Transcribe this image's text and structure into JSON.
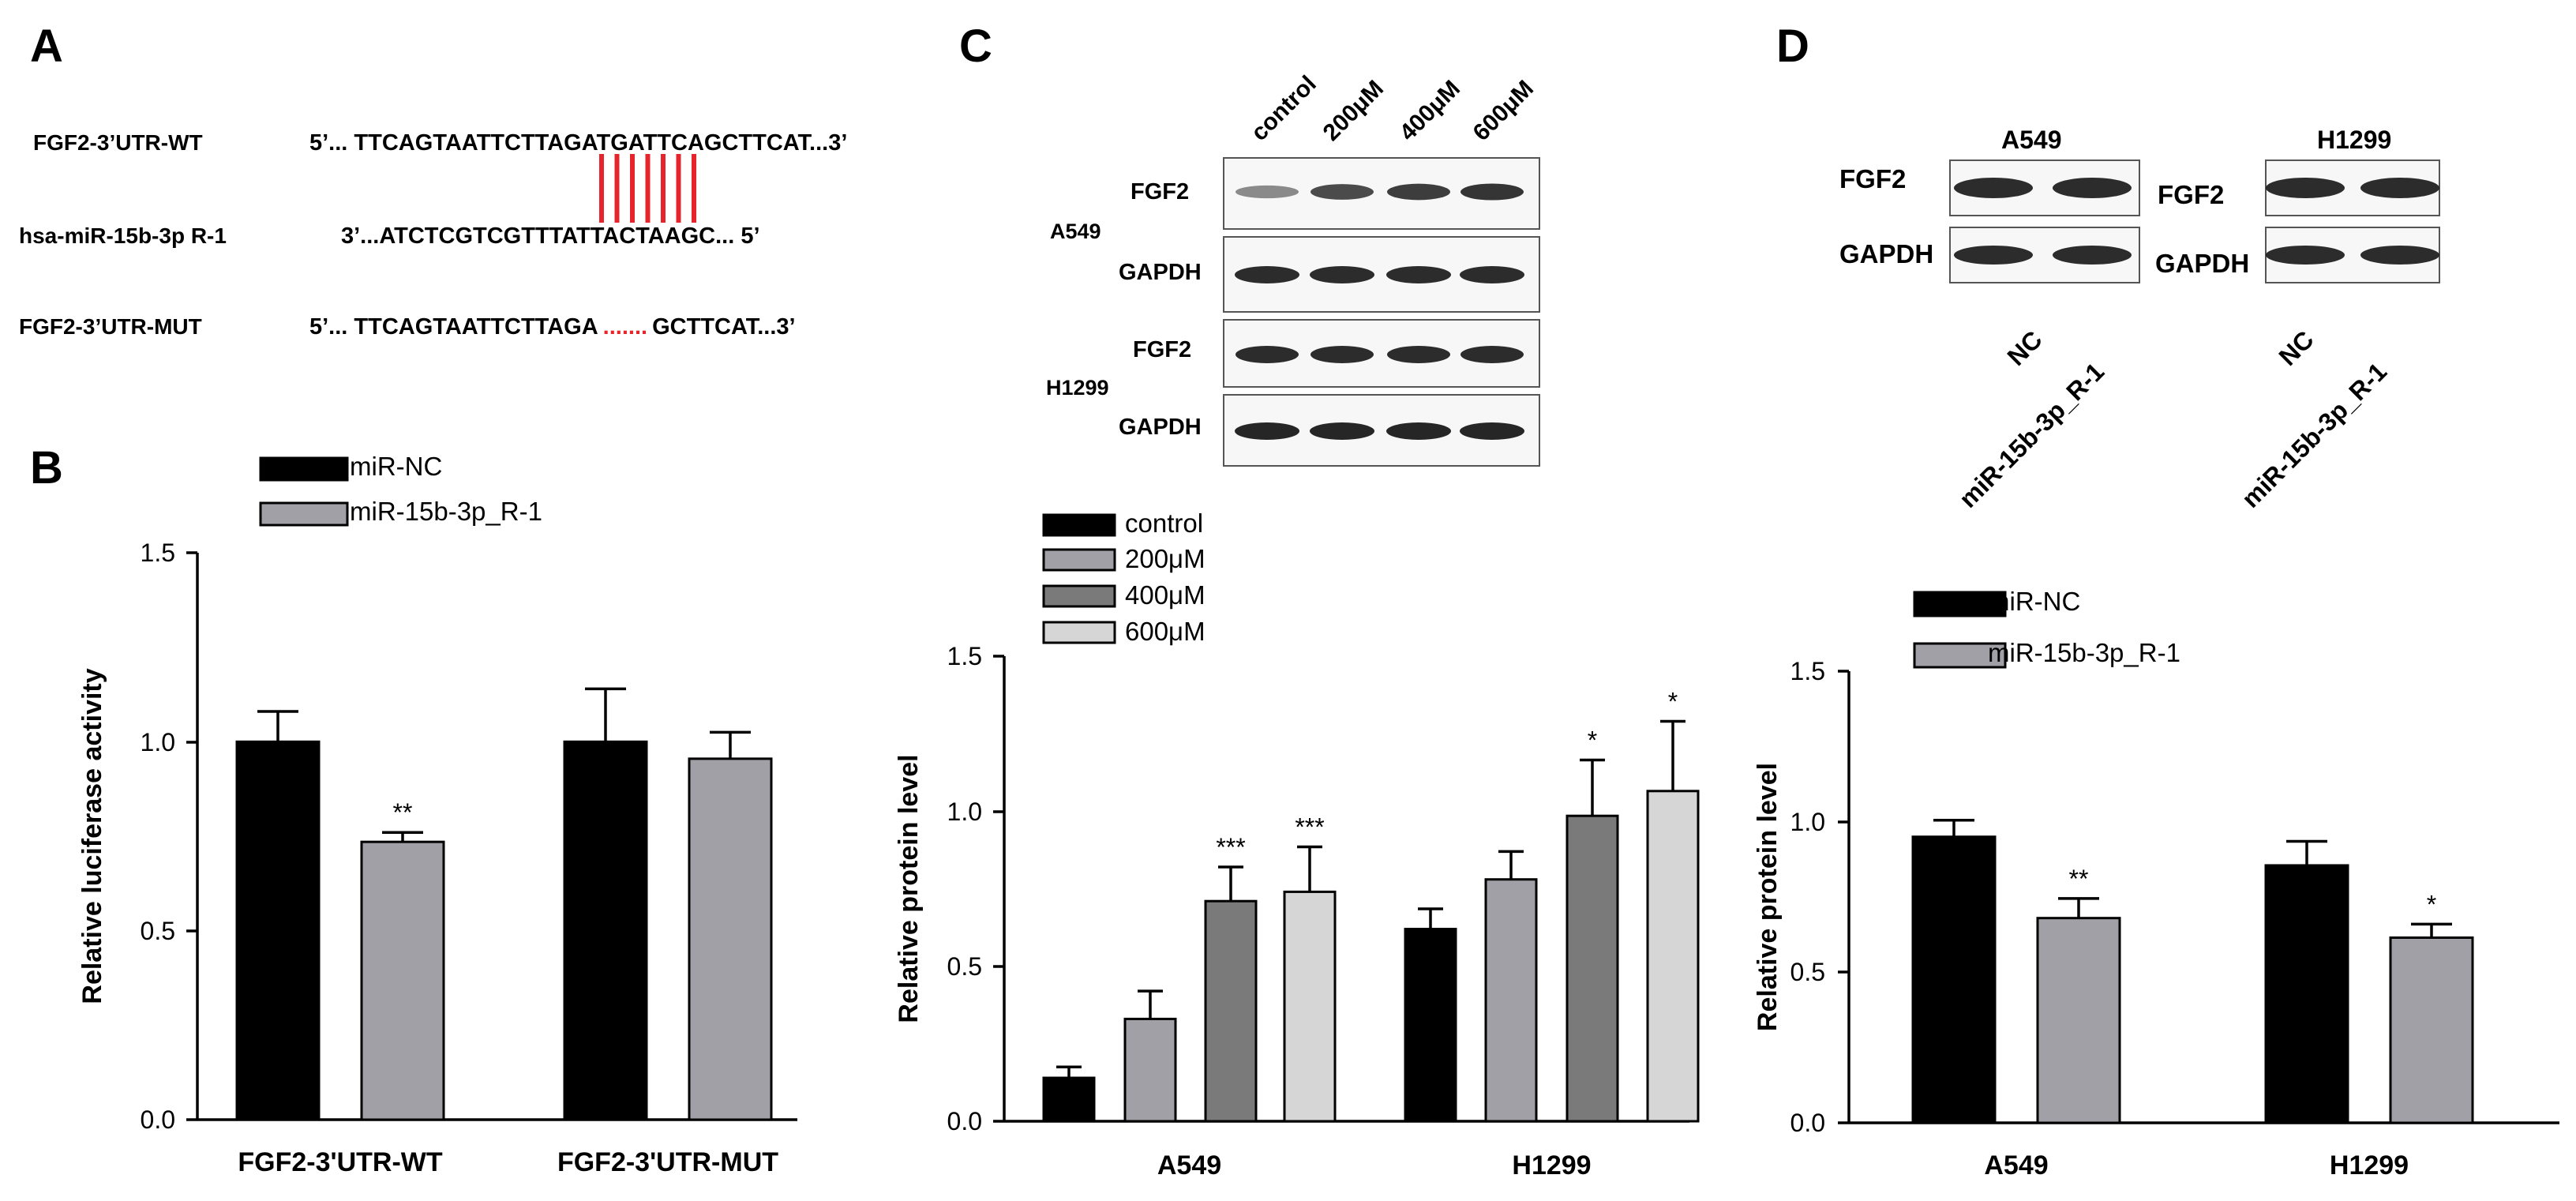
{
  "panel_letters": {
    "a": "A",
    "b": "B",
    "c": "C",
    "d": "D"
  },
  "colors": {
    "black": "#000000",
    "gray": "#a0a0a6",
    "dark_gray": "#7a7a7a",
    "light_gray": "#d6d6d6",
    "line_red": "#e5242b",
    "blot_band": "#1a1a1a"
  },
  "panelA": {
    "rows": [
      {
        "label": "FGF2-3’UTR-WT",
        "seq": "5’... TTCAGTAATTCTTAGATGATTCAGCTTCAT...3’"
      },
      {
        "label": "hsa-miR-15b-3p R-1",
        "seq": "3’...ATCTCGTCGTTTATTACTAAGC... 5’"
      },
      {
        "label": "FGF2-3’UTR-MUT",
        "seq_left": "5’... TTCAGTAATTCTTAGA",
        "seq_dots": ".......",
        "seq_right": "GCTTCAT...3’"
      }
    ]
  },
  "panelC_blot": {
    "lanes": [
      "control",
      "200μM",
      "400μM",
      "600μM"
    ],
    "cell_lines": [
      "A549",
      "H1299"
    ],
    "proteins": [
      "FGF2",
      "GAPDH",
      "FGF2",
      "GAPDH"
    ],
    "fgf2_a549_intensity": [
      0.35,
      0.75,
      0.85,
      0.9
    ]
  },
  "panelD_blot": {
    "cell_lines": [
      "A549",
      "H1299"
    ],
    "proteins_left": [
      "FGF2",
      "GAPDH"
    ],
    "proteins_right": [
      "FGF2",
      "GAPDH"
    ],
    "lanes": [
      "NC",
      "miR-15b-3p_R-1"
    ]
  },
  "chart_data": [
    {
      "id": "B",
      "type": "bar",
      "categories": [
        "FGF2-3'UTR-WT",
        "FGF2-3'UTR-MUT"
      ],
      "series": [
        {
          "name": "miR-NC",
          "values": [
            1.0,
            1.0
          ],
          "errors": [
            0.08,
            0.14
          ],
          "sig": [
            "",
            ""
          ],
          "color": "#000000"
        },
        {
          "name": "miR-15b-3p_R-1",
          "values": [
            0.735,
            0.955
          ],
          "errors": [
            0.025,
            0.07
          ],
          "sig": [
            "**",
            ""
          ],
          "color": "#a0a0a6"
        }
      ],
      "ylabel": "Relative luciferase activity",
      "ylim": [
        0,
        1.5
      ],
      "yticks": [
        "0.0",
        "0.5",
        "1.0",
        "1.5"
      ]
    },
    {
      "id": "C",
      "type": "bar",
      "categories": [
        "A549",
        "H1299"
      ],
      "series": [
        {
          "name": "control",
          "values": [
            0.14,
            0.62
          ],
          "errors": [
            0.035,
            0.065
          ],
          "sig": [
            "",
            ""
          ],
          "color": "#000000"
        },
        {
          "name": "200μM",
          "values": [
            0.33,
            0.78
          ],
          "errors": [
            0.09,
            0.09
          ],
          "sig": [
            "",
            ""
          ],
          "color": "#a0a0a6"
        },
        {
          "name": "400μM",
          "values": [
            0.71,
            0.985
          ],
          "errors": [
            0.11,
            0.18
          ],
          "sig": [
            "***",
            "*"
          ],
          "color": "#7a7a7a"
        },
        {
          "name": "600μM",
          "values": [
            0.74,
            1.065
          ],
          "errors": [
            0.145,
            0.225
          ],
          "sig": [
            "***",
            "*"
          ],
          "color": "#d6d6d6"
        }
      ],
      "ylabel": "Relative protein level",
      "ylim": [
        0,
        1.5
      ],
      "yticks": [
        "0.0",
        "0.5",
        "1.0",
        "1.5"
      ]
    },
    {
      "id": "D",
      "type": "bar",
      "categories": [
        "A549",
        "H1299"
      ],
      "series": [
        {
          "name": "miR-NC",
          "values": [
            0.95,
            0.855
          ],
          "errors": [
            0.055,
            0.08
          ],
          "sig": [
            "",
            ""
          ],
          "color": "#000000"
        },
        {
          "name": "miR-15b-3p_R-1",
          "values": [
            0.68,
            0.615
          ],
          "errors": [
            0.065,
            0.045
          ],
          "sig": [
            "**",
            "*"
          ],
          "color": "#a0a0a6"
        }
      ],
      "ylabel": "Relative protein level",
      "ylim": [
        0,
        1.5
      ],
      "yticks": [
        "0.0",
        "0.5",
        "1.0",
        "1.5"
      ]
    }
  ]
}
